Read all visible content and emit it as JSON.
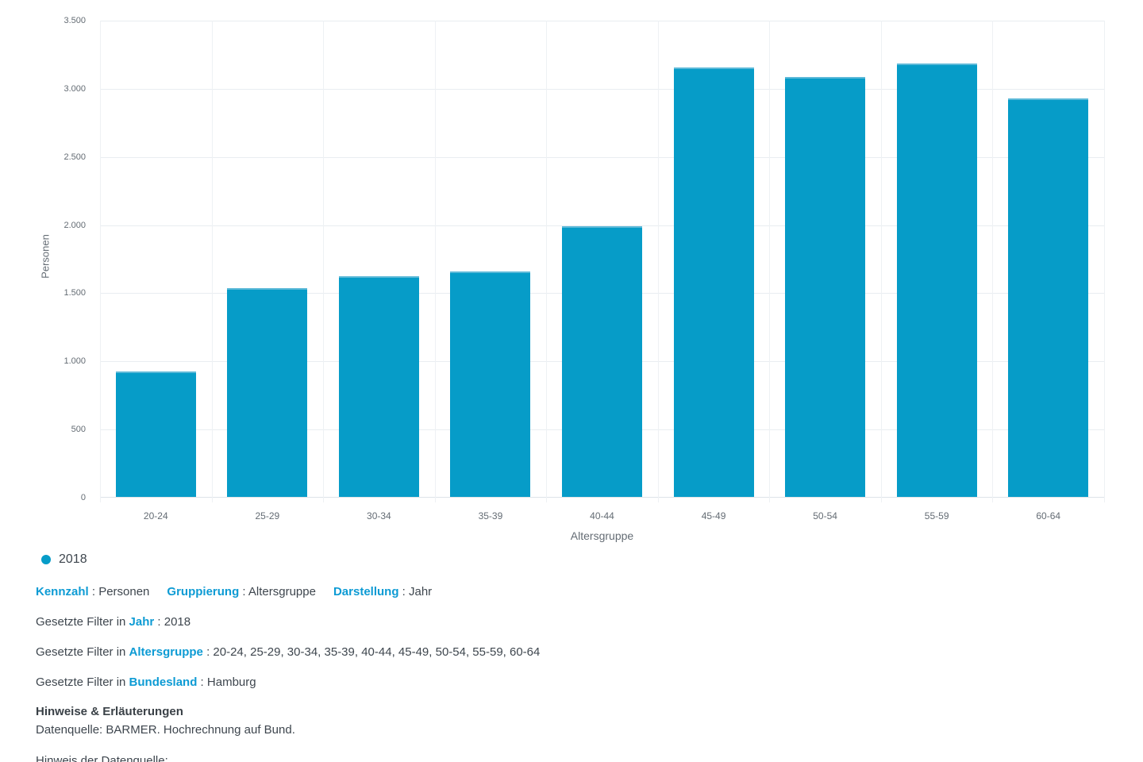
{
  "chart_data": {
    "type": "bar",
    "title": "",
    "xlabel": "Altersgruppe",
    "ylabel": "Personen",
    "ylim": [
      0,
      3500
    ],
    "y_tick_step": 500,
    "grid": true,
    "legend_position": "bottom-left",
    "categories": [
      "20-24",
      "25-29",
      "30-34",
      "35-39",
      "40-44",
      "45-49",
      "50-54",
      "55-59",
      "60-64"
    ],
    "series": [
      {
        "name": "2018",
        "values": [
          920,
          1530,
          1620,
          1655,
          1985,
          3150,
          3080,
          3180,
          2925
        ]
      }
    ],
    "yticks": [
      {
        "v": 0,
        "label": "0"
      },
      {
        "v": 500,
        "label": "500"
      },
      {
        "v": 1000,
        "label": "1.000"
      },
      {
        "v": 1500,
        "label": "1.500"
      },
      {
        "v": 2000,
        "label": "2.000"
      },
      {
        "v": 2500,
        "label": "2.500"
      },
      {
        "v": 3000,
        "label": "3.000"
      },
      {
        "v": 3500,
        "label": "3.500"
      }
    ]
  },
  "legend": {
    "label": "2018"
  },
  "meta": {
    "items": [
      {
        "term": "Kennzahl",
        "value": "Personen"
      },
      {
        "term": "Gruppierung",
        "value": "Altersgruppe"
      },
      {
        "term": "Darstellung",
        "value": "Jahr"
      }
    ]
  },
  "filters": {
    "prefix": "Gesetzte Filter in",
    "items": [
      {
        "term": "Jahr",
        "value": "2018"
      },
      {
        "term": "Altersgruppe",
        "value": "20-24, 25-29, 30-34, 35-39, 40-44, 45-49, 50-54, 55-59, 60-64"
      },
      {
        "term": "Bundesland",
        "value": "Hamburg"
      }
    ]
  },
  "notes": {
    "heading": "Hinweise & Erläuterungen",
    "source": "Datenquelle: BARMER. Hochrechnung auf Bund.",
    "truncated_line": "Hinweis der Datenquelle:"
  },
  "colors": {
    "bar": "#069cc8",
    "bar_edge": "#5cb9d8",
    "accent": "#0d9bd4",
    "text_dark": "#3e464e",
    "axis_text": "#646c74",
    "grid_h": "#e9edf1",
    "grid_v": "#eef1f4",
    "axis_line": "#dee3e8"
  }
}
